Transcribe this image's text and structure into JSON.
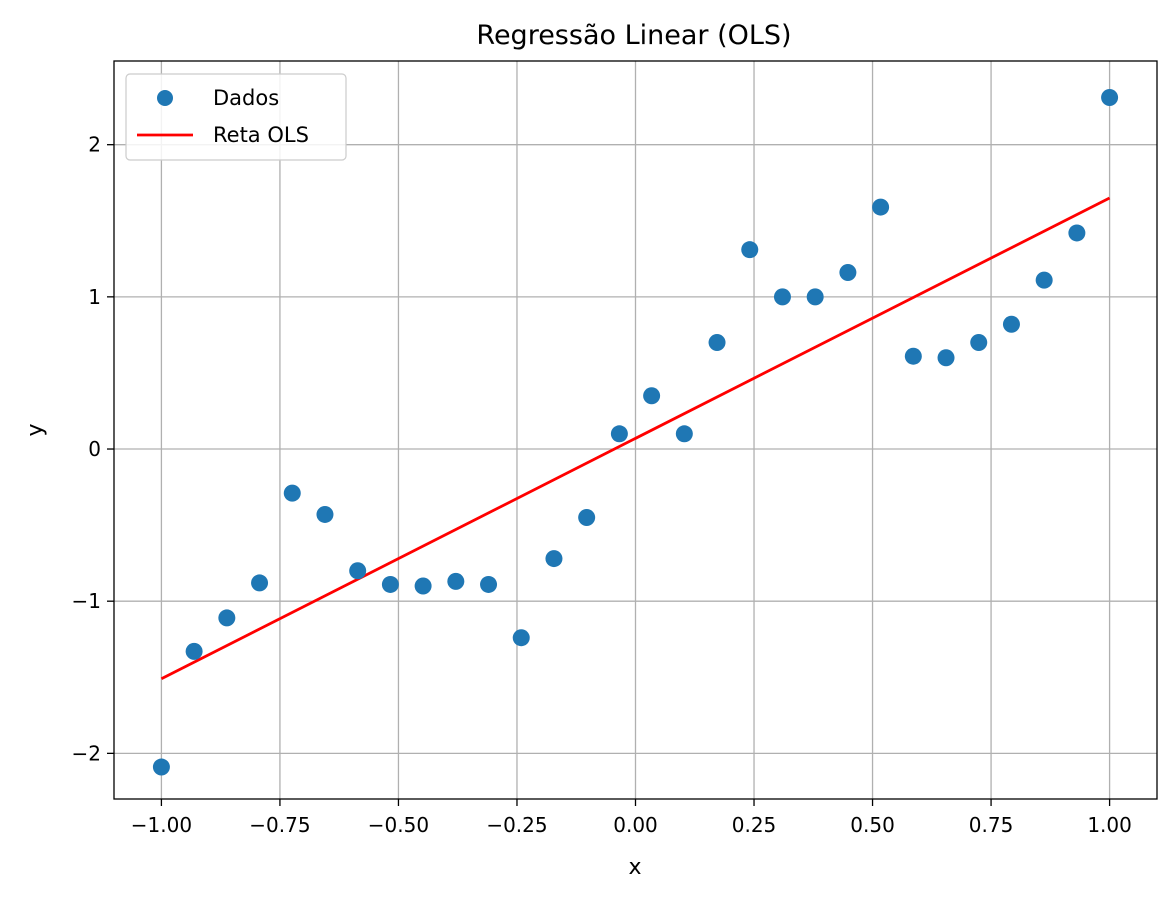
{
  "chart_data": {
    "type": "scatter",
    "title": "Regressão Linear (OLS)",
    "xlabel": "x",
    "ylabel": "y",
    "xlim": [
      -1.1,
      1.1
    ],
    "ylim": [
      -2.3,
      2.55
    ],
    "xticks": [
      -1.0,
      -0.75,
      -0.5,
      -0.25,
      0.0,
      0.25,
      0.5,
      0.75,
      1.0
    ],
    "xtick_labels": [
      "−1.00",
      "−0.75",
      "−0.50",
      "−0.25",
      "0.00",
      "0.25",
      "0.50",
      "0.75",
      "1.00"
    ],
    "yticks": [
      -2,
      -1,
      0,
      1,
      2
    ],
    "ytick_labels": [
      "−2",
      "−1",
      "0",
      "1",
      "2"
    ],
    "grid": true,
    "legend_position": "top-left",
    "series": [
      {
        "name": "Dados",
        "kind": "scatter",
        "color": "#1f77b4",
        "x": [
          -1.0,
          -0.931,
          -0.862,
          -0.793,
          -0.724,
          -0.655,
          -0.586,
          -0.517,
          -0.448,
          -0.379,
          -0.31,
          -0.241,
          -0.172,
          -0.103,
          -0.034,
          0.034,
          0.103,
          0.172,
          0.241,
          0.31,
          0.379,
          0.448,
          0.517,
          0.586,
          0.655,
          0.724,
          0.793,
          0.862,
          0.931,
          1.0
        ],
        "y": [
          -2.09,
          -1.33,
          -1.11,
          -0.88,
          -0.29,
          -0.43,
          -0.8,
          -0.89,
          -0.9,
          -0.87,
          -0.89,
          -1.24,
          -0.72,
          -0.45,
          0.1,
          0.35,
          0.1,
          0.7,
          1.31,
          1.0,
          1.0,
          1.16,
          1.59,
          0.61,
          0.6,
          0.7,
          0.82,
          1.11,
          1.42,
          2.31
        ]
      },
      {
        "name": "Reta OLS",
        "kind": "line",
        "color": "#ff0000",
        "x": [
          -1.0,
          1.0
        ],
        "y": [
          -1.51,
          1.65
        ]
      }
    ]
  }
}
